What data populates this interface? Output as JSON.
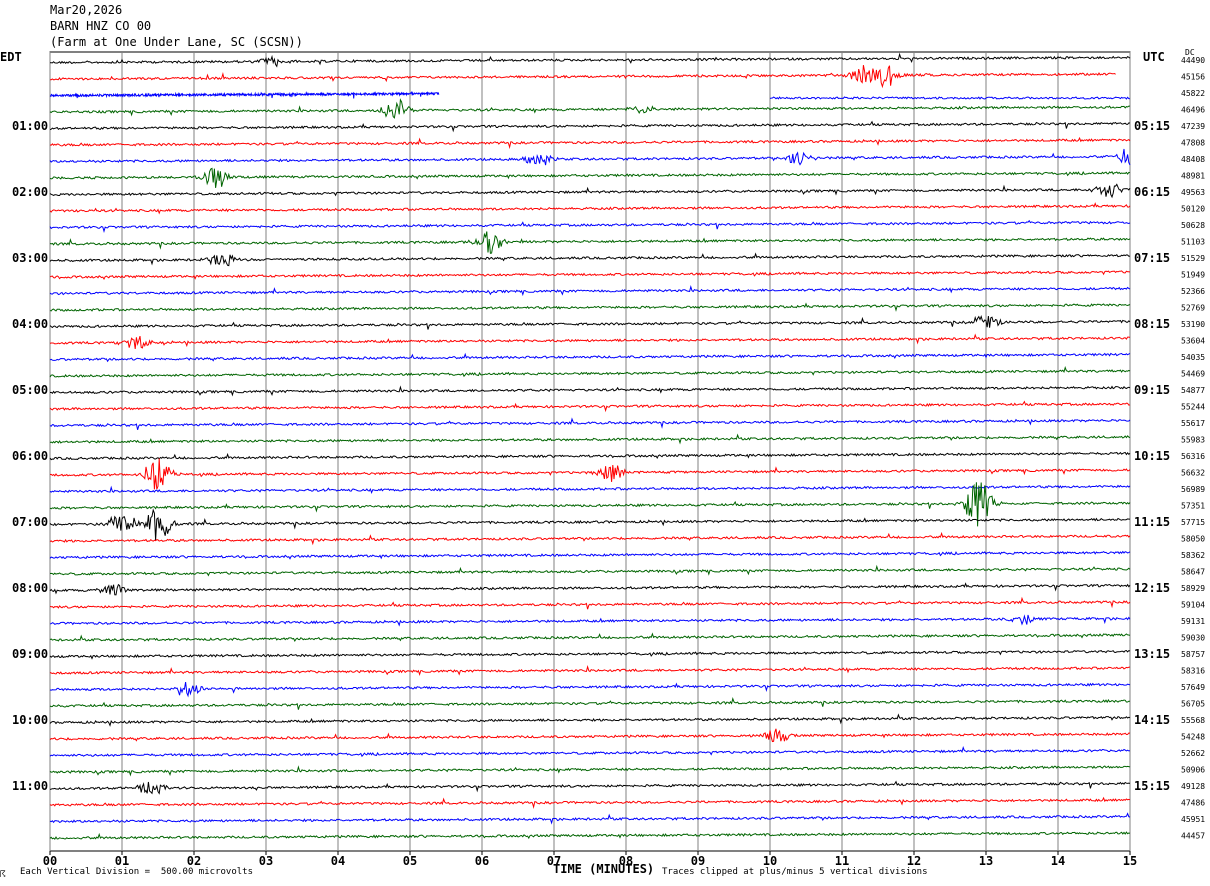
{
  "header": {
    "date": "Mar20,2026",
    "station": "BARN HNZ CO 00",
    "location": "(Farm at One Under Lane, SC (SCSN))"
  },
  "left_tz": "EDT",
  "right_tz": "UTC",
  "dc_label": "DC",
  "footer": {
    "mark": "☈",
    "scale": "Each Vertical Division =  500.00 microvolts",
    "clip": "Traces clipped at plus/minus 5 vertical divisions"
  },
  "colors": {
    "cycle": [
      "#000000",
      "#ff0000",
      "#0000ff",
      "#006400"
    ],
    "grid": "#808080"
  },
  "chart_data": {
    "type": "line",
    "xlabel": "TIME (MINUTES)",
    "xlim": [
      0,
      15
    ],
    "x_ticks": [
      "00",
      "01",
      "02",
      "03",
      "04",
      "05",
      "06",
      "07",
      "08",
      "09",
      "10",
      "11",
      "12",
      "13",
      "14",
      "15"
    ],
    "left_hour_labels": [
      "01:00",
      "02:00",
      "03:00",
      "04:00",
      "05:00",
      "06:00",
      "07:00",
      "08:00",
      "09:00",
      "10:00",
      "11:00"
    ],
    "right_hour_labels": [
      "05:15",
      "06:15",
      "07:15",
      "08:15",
      "09:15",
      "10:15",
      "11:15",
      "12:15",
      "13:15",
      "14:15",
      "15:15"
    ],
    "traces_per_hour": 4,
    "trace_count": 48,
    "dc_offsets": [
      44490,
      45156,
      45822,
      46496,
      47239,
      47808,
      48408,
      48981,
      49563,
      50120,
      50628,
      51103,
      51529,
      51949,
      52366,
      52769,
      53190,
      53604,
      54035,
      54469,
      54877,
      55244,
      55617,
      55983,
      56316,
      56632,
      56989,
      57351,
      57715,
      58050,
      58362,
      58647,
      58929,
      59104,
      59131,
      59030,
      58757,
      58316,
      57649,
      56705,
      55568,
      54248,
      52662,
      50906,
      49128,
      47486,
      45951,
      44457
    ],
    "events": [
      {
        "trace": 0,
        "minute": 3.1,
        "amp": 5,
        "label": "burst"
      },
      {
        "trace": 1,
        "minute": 11.3,
        "amp": 10,
        "label": "burst"
      },
      {
        "trace": 1,
        "minute": 11.6,
        "amp": 14,
        "label": "burst"
      },
      {
        "trace": 3,
        "minute": 4.8,
        "amp": 12,
        "label": "burst"
      },
      {
        "trace": 3,
        "minute": 8.2,
        "amp": 5,
        "label": "burst"
      },
      {
        "trace": 6,
        "minute": 6.8,
        "amp": 7,
        "label": "burst"
      },
      {
        "trace": 6,
        "minute": 10.4,
        "amp": 7,
        "label": "burst"
      },
      {
        "trace": 6,
        "minute": 15.0,
        "amp": 10,
        "label": "burst"
      },
      {
        "trace": 7,
        "minute": 2.3,
        "amp": 12,
        "label": "burst"
      },
      {
        "trace": 8,
        "minute": 14.7,
        "amp": 8,
        "label": "burst"
      },
      {
        "trace": 11,
        "minute": 6.1,
        "amp": 14,
        "label": "burst"
      },
      {
        "trace": 12,
        "minute": 2.4,
        "amp": 8,
        "label": "burst"
      },
      {
        "trace": 16,
        "minute": 13.0,
        "amp": 8,
        "label": "burst"
      },
      {
        "trace": 17,
        "minute": 1.2,
        "amp": 8,
        "label": "burst"
      },
      {
        "trace": 25,
        "minute": 1.5,
        "amp": 20,
        "label": "clipped"
      },
      {
        "trace": 25,
        "minute": 7.8,
        "amp": 9,
        "label": "burst"
      },
      {
        "trace": 27,
        "minute": 12.9,
        "amp": 28,
        "label": "clipped"
      },
      {
        "trace": 28,
        "minute": 1.0,
        "amp": 14,
        "label": "burst"
      },
      {
        "trace": 28,
        "minute": 1.5,
        "amp": 18,
        "label": "burst"
      },
      {
        "trace": 32,
        "minute": 0.9,
        "amp": 7,
        "label": "burst"
      },
      {
        "trace": 34,
        "minute": 13.5,
        "amp": 6,
        "label": "burst"
      },
      {
        "trace": 38,
        "minute": 1.9,
        "amp": 8,
        "label": "burst"
      },
      {
        "trace": 41,
        "minute": 10.1,
        "amp": 7,
        "label": "burst"
      },
      {
        "trace": 44,
        "minute": 1.4,
        "amp": 7,
        "label": "burst"
      }
    ]
  }
}
